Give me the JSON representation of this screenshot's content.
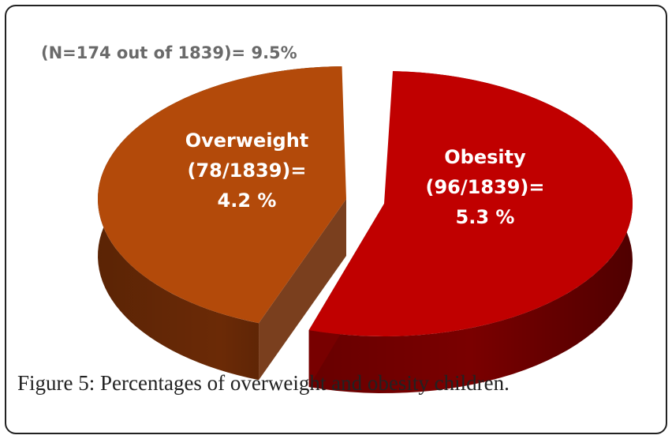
{
  "chart_data": {
    "type": "pie",
    "title": "(N=174 out of  1839)=  9.5%",
    "total_count": 174,
    "population": 1839,
    "total_percent": 9.5,
    "slices": [
      {
        "name": "Obesity",
        "count": 96,
        "percent": 5.3,
        "label_lines": [
          "Obesity",
          "(96/1839)=",
          "5.3 %"
        ],
        "top_color": "#c00000",
        "side_color": "#7a0000"
      },
      {
        "name": "Overweight",
        "count": 78,
        "percent": 4.2,
        "label_lines": [
          "Overweight",
          "(78/1839)=",
          "4.2 %"
        ],
        "top_color": "#b34a0a",
        "side_color": "#6b2a06"
      }
    ]
  },
  "caption": {
    "label": "Figure 5",
    "text": ": Percentages of overweight and obesity children."
  }
}
